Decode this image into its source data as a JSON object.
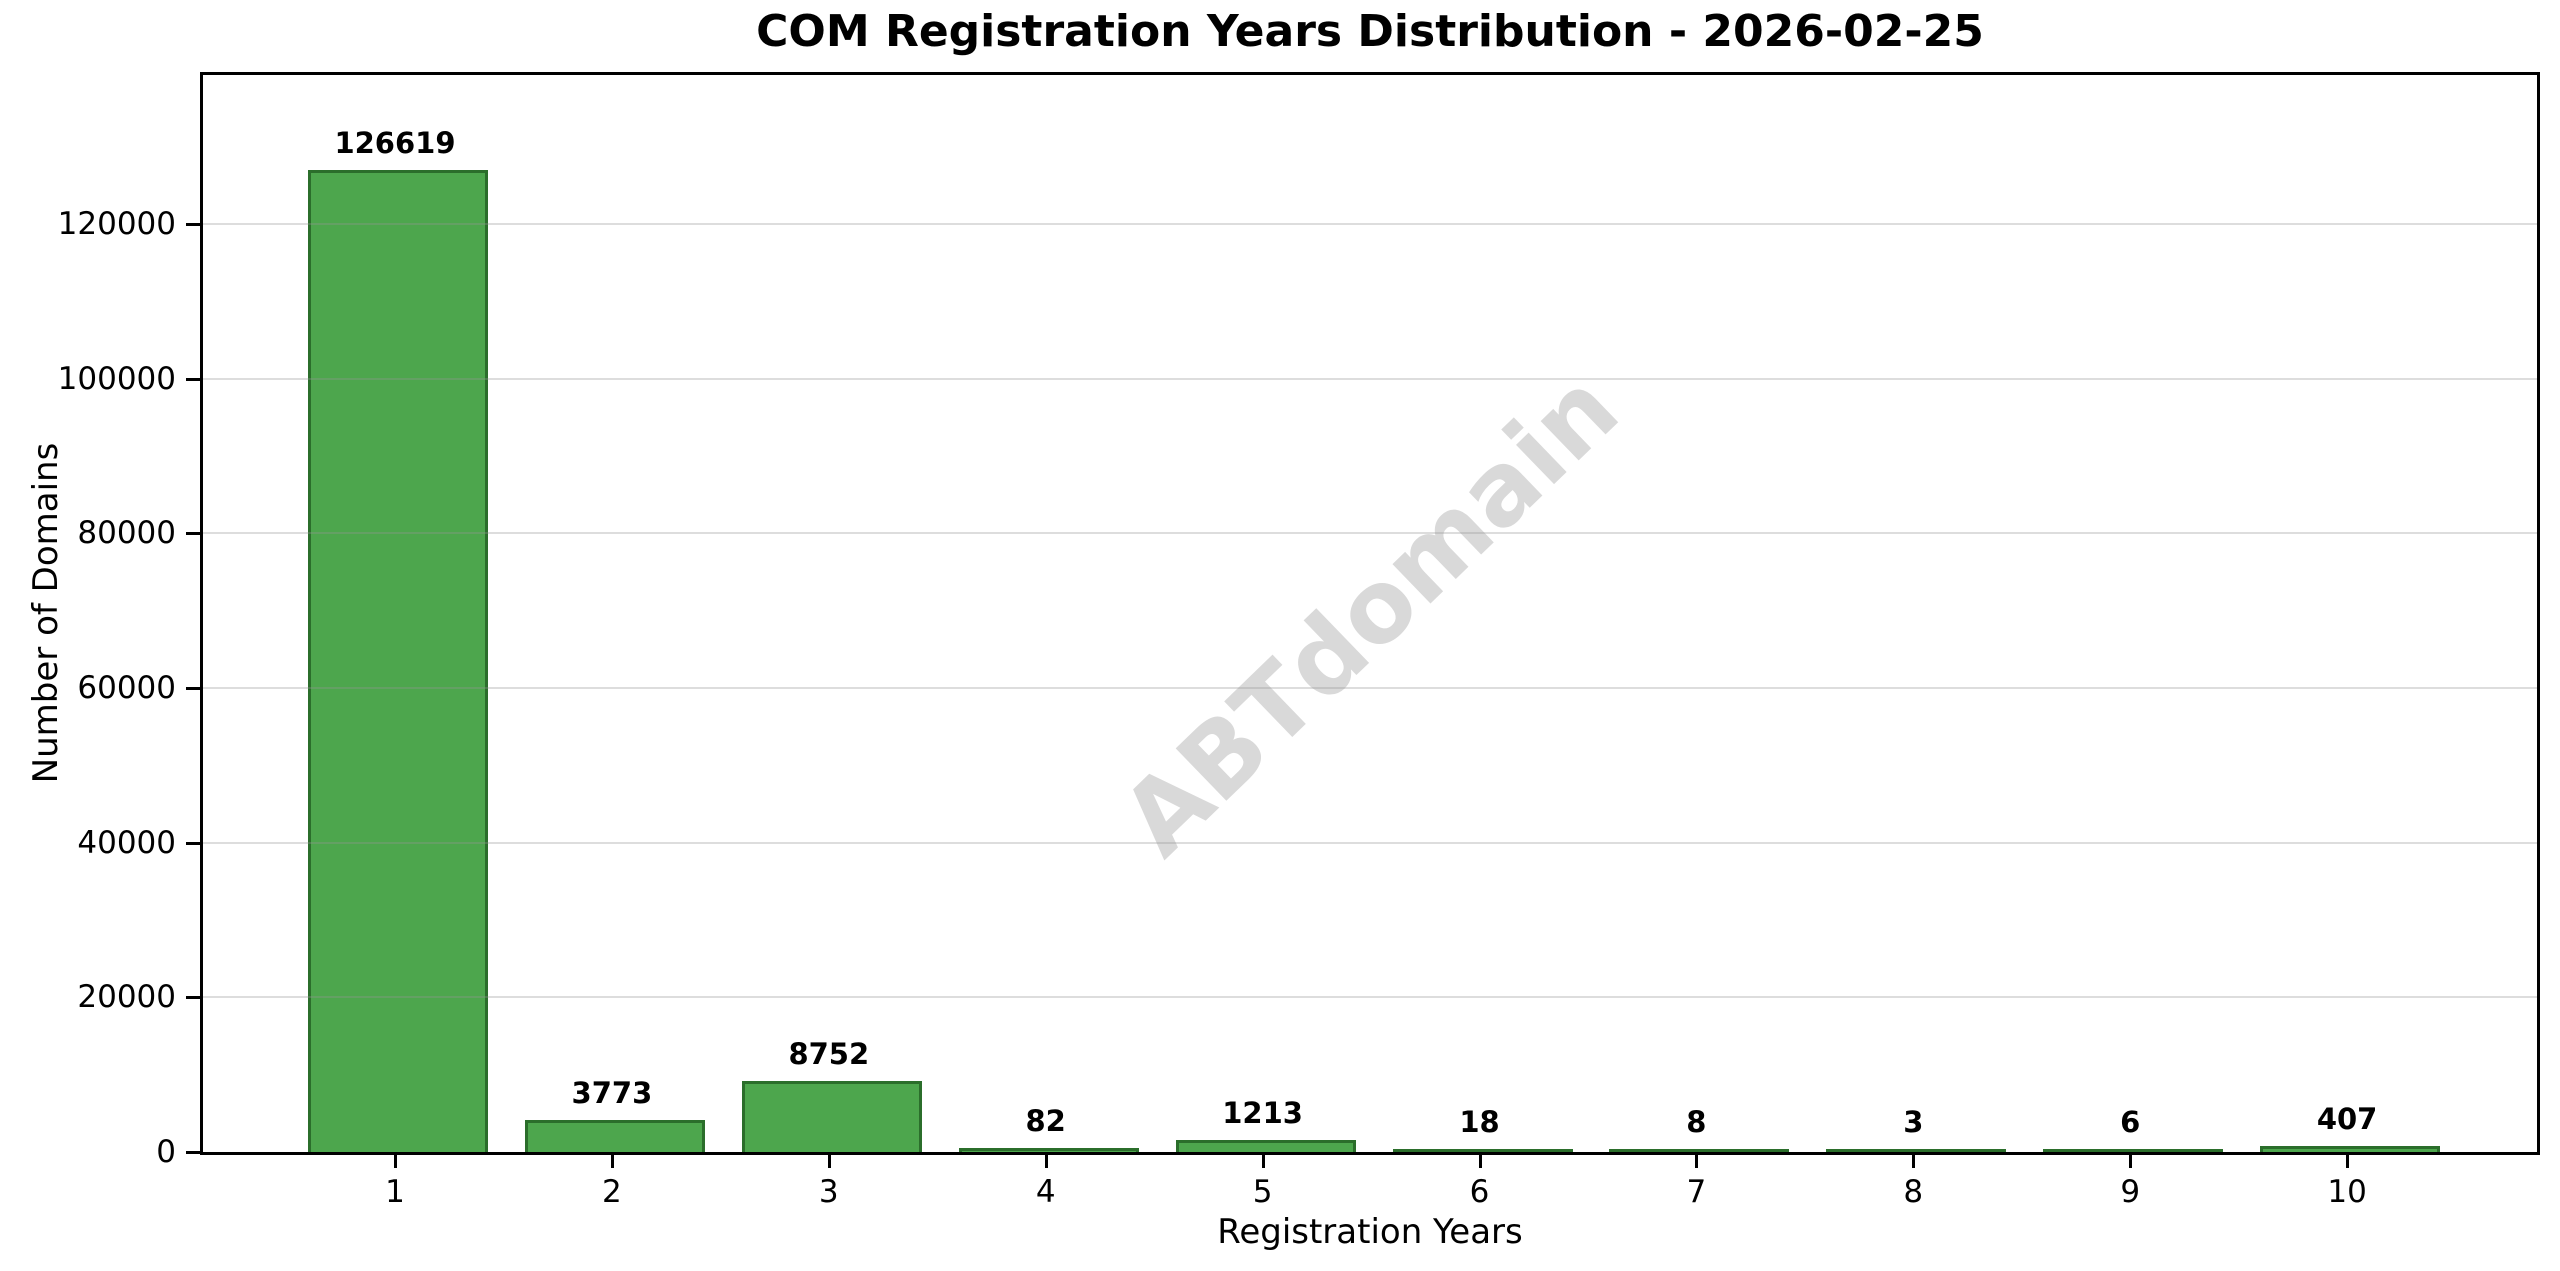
{
  "chart_data": {
    "type": "bar",
    "title": "COM Registration Years Distribution - 2026-02-25",
    "xlabel": "Registration Years",
    "ylabel": "Number of Domains",
    "categories": [
      "1",
      "2",
      "3",
      "4",
      "5",
      "6",
      "7",
      "8",
      "9",
      "10"
    ],
    "values": [
      126619,
      3773,
      8752,
      82,
      1213,
      18,
      8,
      3,
      6,
      407
    ],
    "bar_labels": [
      "126619",
      "3773",
      "8752",
      "82",
      "1213",
      "18",
      "8",
      "3",
      "6",
      "407"
    ],
    "yticks": [
      0,
      20000,
      40000,
      60000,
      80000,
      100000,
      120000
    ],
    "ytick_labels": [
      "0",
      "20000",
      "40000",
      "60000",
      "80000",
      "100000",
      "120000"
    ],
    "ylim": [
      0,
      139281
    ],
    "grid": "horizontal",
    "legend": null,
    "watermark": "ABTdomain",
    "colors": {
      "bar_fill": "#4da64d",
      "bar_edge": "#2b6e2b",
      "grid": "#e0e0e0",
      "text": "#000000",
      "watermark": "#d9d9d9",
      "background": "#ffffff"
    }
  }
}
